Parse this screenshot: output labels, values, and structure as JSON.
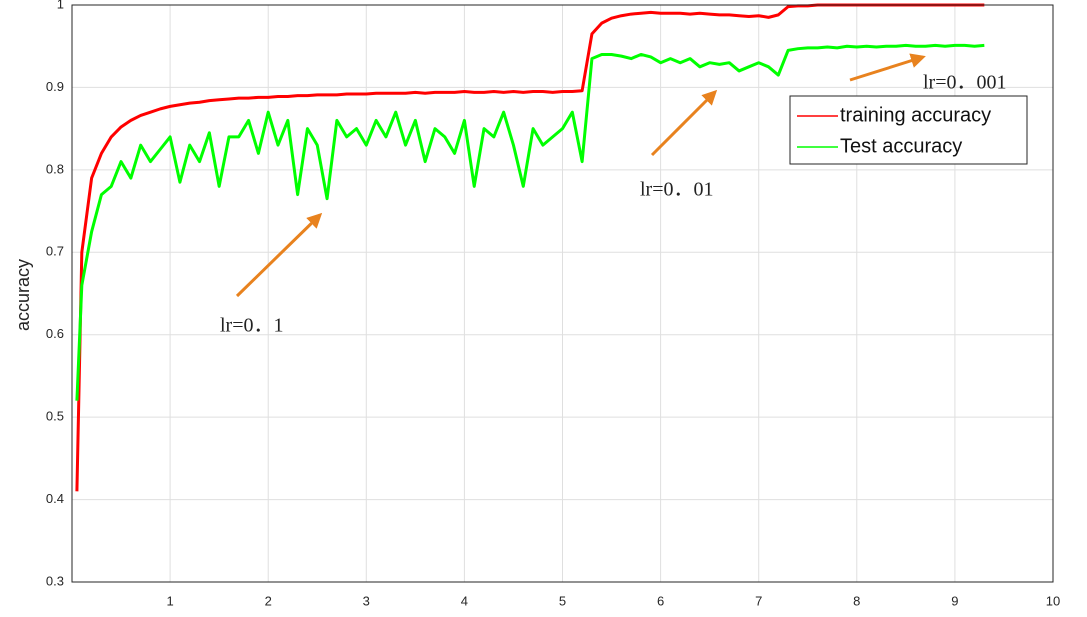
{
  "chart_data": {
    "type": "line",
    "y_label": "accuracy",
    "x": [
      0.05,
      0.1,
      0.2,
      0.3,
      0.4,
      0.5,
      0.6,
      0.7,
      0.8,
      0.9,
      1.0,
      1.1,
      1.2,
      1.3,
      1.4,
      1.5,
      1.6,
      1.7,
      1.8,
      1.9,
      2.0,
      2.1,
      2.2,
      2.3,
      2.4,
      2.5,
      2.6,
      2.7,
      2.8,
      2.9,
      3.0,
      3.1,
      3.2,
      3.3,
      3.4,
      3.5,
      3.6,
      3.7,
      3.8,
      3.9,
      4.0,
      4.1,
      4.2,
      4.3,
      4.4,
      4.5,
      4.6,
      4.7,
      4.8,
      4.9,
      5.0,
      5.1,
      5.2,
      5.3,
      5.4,
      5.5,
      5.6,
      5.7,
      5.8,
      5.9,
      6.0,
      6.1,
      6.2,
      6.3,
      6.4,
      6.5,
      6.6,
      6.7,
      6.8,
      6.9,
      7.0,
      7.1,
      7.2,
      7.3,
      7.4,
      7.5,
      7.6,
      7.7,
      7.8,
      7.9,
      8.0,
      8.1,
      8.2,
      8.3,
      8.4,
      8.5,
      8.6,
      8.7,
      8.8,
      8.9,
      9.0,
      9.1,
      9.2,
      9.3
    ],
    "series": [
      {
        "name": "training accuracy",
        "color": "#ff0000",
        "values": [
          0.41,
          0.7,
          0.79,
          0.82,
          0.84,
          0.852,
          0.86,
          0.866,
          0.87,
          0.874,
          0.877,
          0.879,
          0.881,
          0.882,
          0.884,
          0.885,
          0.886,
          0.887,
          0.887,
          0.888,
          0.888,
          0.889,
          0.889,
          0.89,
          0.89,
          0.891,
          0.891,
          0.891,
          0.892,
          0.892,
          0.892,
          0.893,
          0.893,
          0.893,
          0.893,
          0.894,
          0.893,
          0.894,
          0.894,
          0.894,
          0.895,
          0.894,
          0.894,
          0.895,
          0.894,
          0.895,
          0.894,
          0.895,
          0.895,
          0.894,
          0.895,
          0.895,
          0.896,
          0.965,
          0.978,
          0.984,
          0.987,
          0.989,
          0.99,
          0.991,
          0.99,
          0.99,
          0.99,
          0.989,
          0.99,
          0.989,
          0.988,
          0.988,
          0.987,
          0.986,
          0.987,
          0.985,
          0.988,
          0.998,
          0.999,
          0.999,
          1.0,
          1.0,
          1.0,
          1.0,
          1.0,
          1.0,
          1.0,
          1.0,
          1.0,
          1.0,
          1.0,
          1.0,
          1.0,
          1.0,
          1.0,
          1.0,
          1.0,
          1.0
        ]
      },
      {
        "name": "Test accuracy",
        "color": "#00ff00",
        "values": [
          0.52,
          0.66,
          0.725,
          0.77,
          0.78,
          0.81,
          0.79,
          0.83,
          0.81,
          0.825,
          0.84,
          0.785,
          0.83,
          0.81,
          0.845,
          0.78,
          0.84,
          0.84,
          0.86,
          0.82,
          0.87,
          0.83,
          0.86,
          0.77,
          0.85,
          0.83,
          0.765,
          0.86,
          0.84,
          0.85,
          0.83,
          0.86,
          0.84,
          0.87,
          0.83,
          0.86,
          0.81,
          0.85,
          0.84,
          0.82,
          0.86,
          0.78,
          0.85,
          0.84,
          0.87,
          0.83,
          0.78,
          0.85,
          0.83,
          0.84,
          0.85,
          0.87,
          0.81,
          0.935,
          0.94,
          0.94,
          0.938,
          0.935,
          0.94,
          0.937,
          0.93,
          0.935,
          0.93,
          0.935,
          0.925,
          0.93,
          0.928,
          0.93,
          0.92,
          0.925,
          0.93,
          0.925,
          0.915,
          0.945,
          0.947,
          0.948,
          0.948,
          0.949,
          0.948,
          0.95,
          0.949,
          0.95,
          0.949,
          0.95,
          0.95,
          0.951,
          0.95,
          0.95,
          0.951,
          0.95,
          0.951,
          0.951,
          0.95,
          0.951
        ]
      }
    ],
    "xlim": [
      0,
      10
    ],
    "xticks": [
      1,
      2,
      3,
      4,
      5,
      6,
      7,
      8,
      9,
      10
    ],
    "ylim": [
      0.3,
      1
    ],
    "yticks": [
      0.3,
      0.4,
      0.5,
      0.6,
      0.7,
      0.8,
      0.9,
      1
    ],
    "grid": true,
    "legend": "upper right",
    "annotations": [
      "lr=0．1",
      "lr=0．01",
      "lr=0．001"
    ]
  }
}
